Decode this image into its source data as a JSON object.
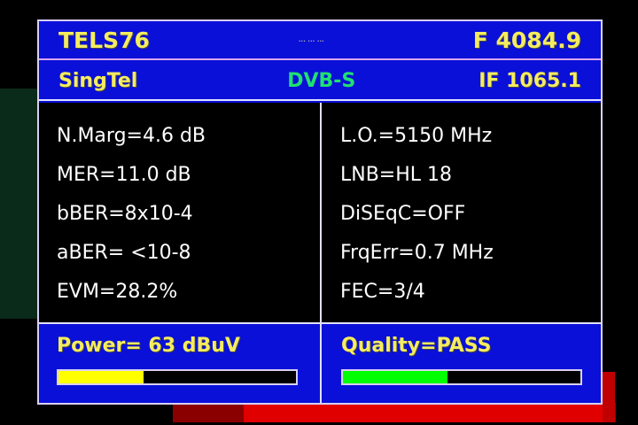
{
  "header": {
    "channel": "TELS76",
    "center_dots": "... ... ...",
    "frequency": "F 4084.9"
  },
  "subheader": {
    "provider": "SingTel",
    "standard": "DVB-S",
    "if_freq": "IF 1065.1"
  },
  "left": [
    "N.Marg=4.6 dB",
    "MER=11.0 dB",
    "bBER=8x10-4",
    "aBER= <10-8",
    "EVM=28.2%"
  ],
  "right": [
    "L.O.=5150 MHz",
    "LNB=HL 18",
    "DiSEqC=OFF",
    "FrqErr=0.7 MHz",
    "FEC=3/4"
  ],
  "power": {
    "label": "Power=  63 dBuV",
    "level_percent": 36,
    "color": "#ffff00"
  },
  "quality": {
    "label": "Quality=PASS",
    "level_percent": 44,
    "color": "#00ff00"
  }
}
